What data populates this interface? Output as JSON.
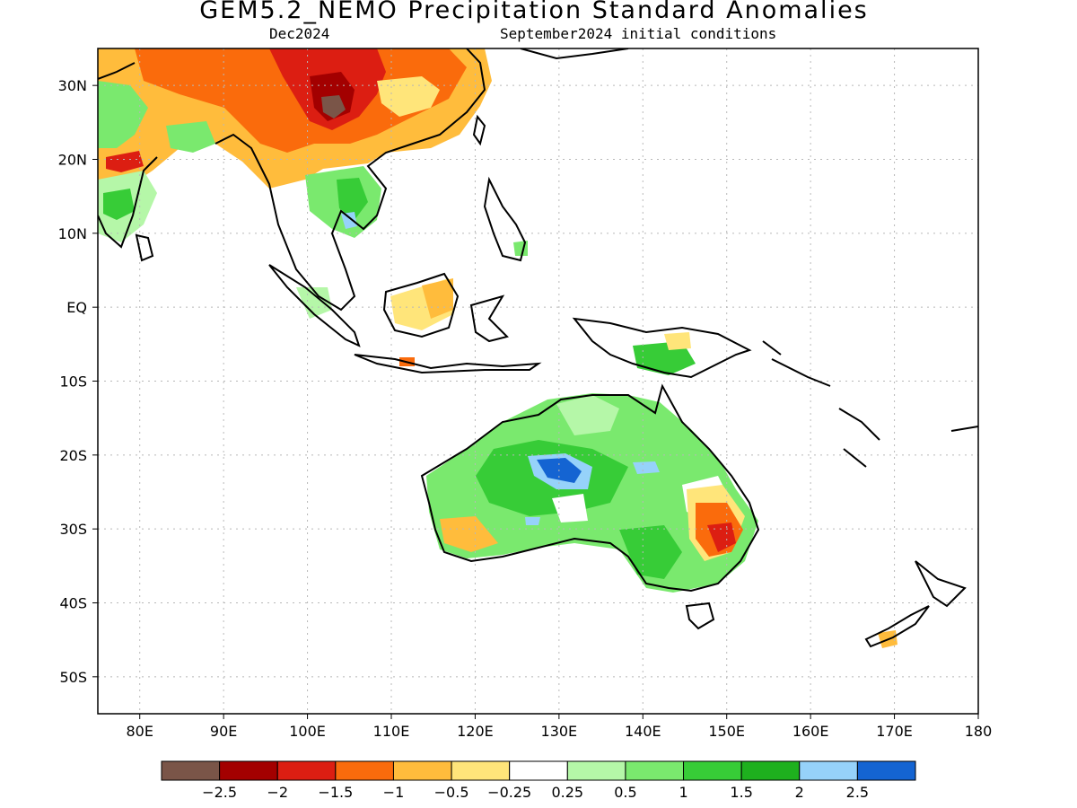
{
  "title": "GEM5.2_NEMO Precipitation Standard Anomalies",
  "subtitle_left": "Dec2024",
  "subtitle_right": "September2024 initial conditions",
  "lon_labels": [
    "80E",
    "90E",
    "100E",
    "110E",
    "120E",
    "130E",
    "140E",
    "150E",
    "160E",
    "170E",
    "180"
  ],
  "lat_labels": [
    "30N",
    "20N",
    "10N",
    "EQ",
    "10S",
    "20S",
    "30S",
    "40S",
    "50S"
  ],
  "map_extent": {
    "lon": [
      75,
      180
    ],
    "lat": [
      -55,
      35
    ]
  },
  "colorbar": {
    "colors": [
      "#7a5548",
      "#a30000",
      "#dc1e12",
      "#fa6b0c",
      "#ffbc3c",
      "#ffe57a",
      "#ffffff",
      "#b5f7a8",
      "#7ae96e",
      "#37cc37",
      "#1eb01e",
      "#96d2fa",
      "#1464d2"
    ],
    "labels": [
      "−2.5",
      "−2",
      "−1.5",
      "−1",
      "−0.5",
      "−0.25",
      "0.25",
      "0.5",
      "1",
      "1.5",
      "2",
      "2.5"
    ]
  }
}
